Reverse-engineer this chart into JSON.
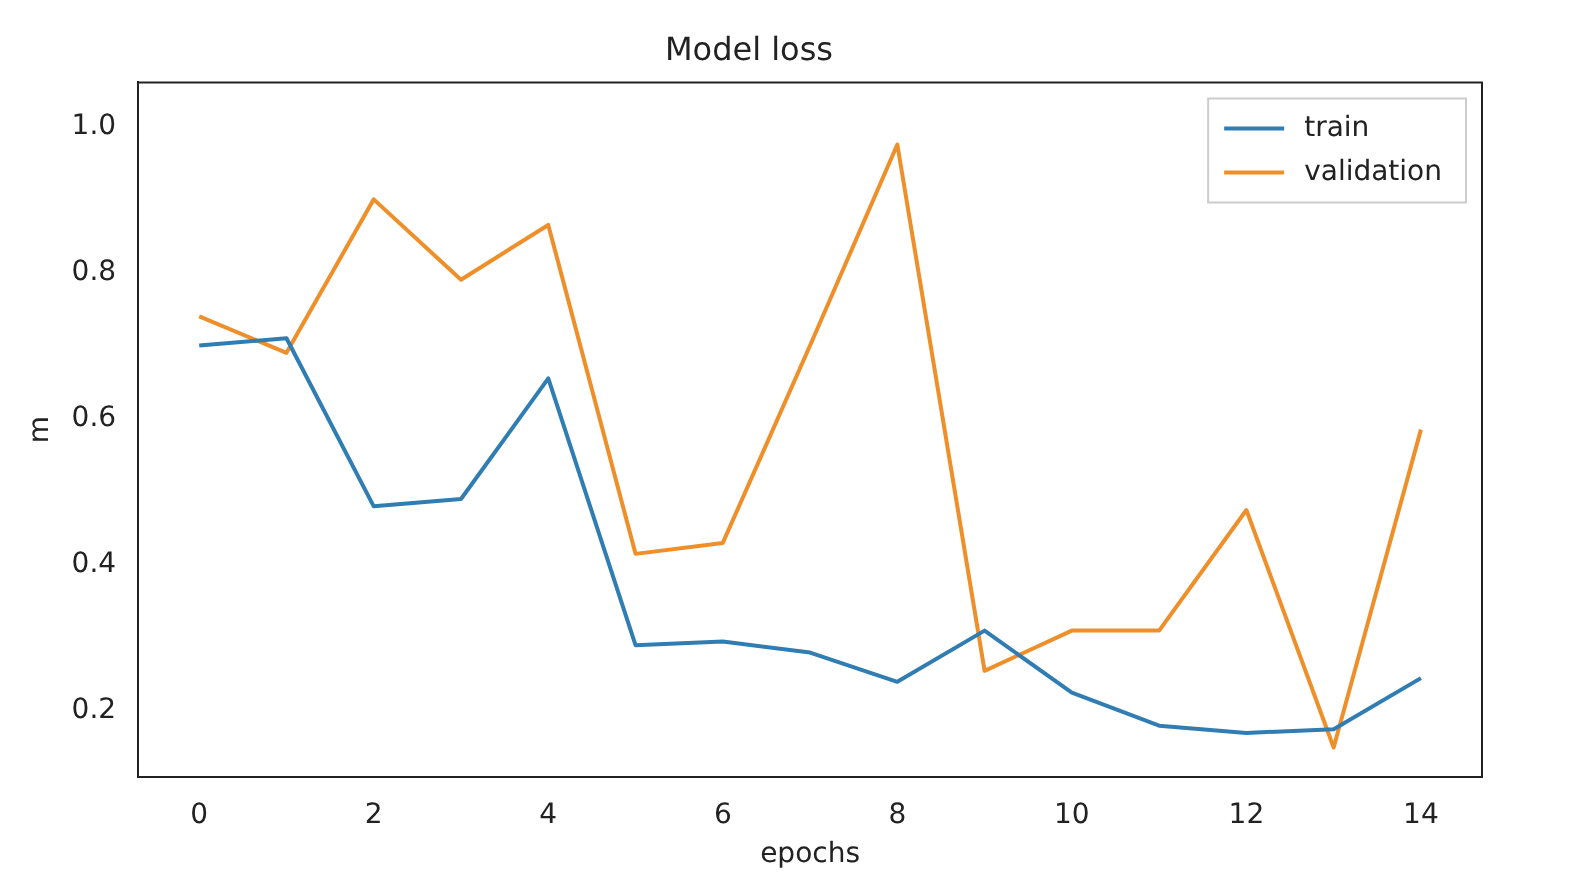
{
  "chart_data": {
    "type": "line",
    "title": "Model loss",
    "xlabel": "epochs",
    "ylabel": "m",
    "x": [
      0,
      1,
      2,
      3,
      4,
      5,
      6,
      7,
      8,
      9,
      10,
      11,
      12,
      13,
      14
    ],
    "series": [
      {
        "name": "train",
        "color": "#2f7db3",
        "values": [
          0.7,
          0.71,
          0.48,
          0.49,
          0.655,
          0.29,
          0.295,
          0.28,
          0.24,
          0.31,
          0.225,
          0.18,
          0.17,
          0.175,
          0.245
        ]
      },
      {
        "name": "validation",
        "color": "#ee8f2a",
        "values": [
          0.74,
          0.69,
          0.9,
          0.79,
          0.865,
          0.415,
          0.43,
          0.7,
          0.975,
          0.255,
          0.31,
          0.31,
          0.475,
          0.15,
          0.585
        ]
      }
    ],
    "xlim": [
      -0.7,
      14.7
    ],
    "xticks": [
      0,
      2,
      4,
      6,
      8,
      10,
      12,
      14
    ],
    "ylim": [
      0.11,
      1.06
    ],
    "yticks": [
      0.2,
      0.4,
      0.6,
      0.8,
      {
        "value": 1,
        "label": "1.0"
      }
    ],
    "grid": false,
    "legend": "top right",
    "marker": "none",
    "line_style": "solid"
  }
}
